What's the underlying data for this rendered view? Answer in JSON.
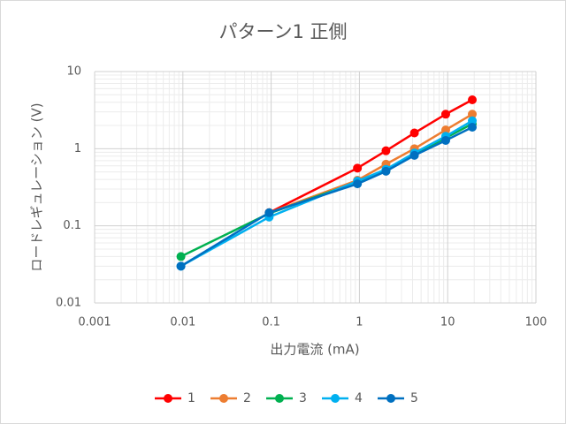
{
  "chart_data": {
    "type": "line",
    "title": "パターン1 正側",
    "x_label": "出力電流 (mA)",
    "y_label": "ロードレギュレーション (V)",
    "x": [
      0.0095,
      0.095,
      0.95,
      2,
      4.2,
      9.5,
      19
    ],
    "series": [
      {
        "name": "1",
        "color": "#ff0000",
        "values": [
          null,
          0.148,
          0.56,
          0.94,
          1.6,
          2.8,
          4.3
        ]
      },
      {
        "name": "2",
        "color": "#ed7d31",
        "values": [
          null,
          0.148,
          0.39,
          0.63,
          1.0,
          1.75,
          2.8
        ]
      },
      {
        "name": "3",
        "color": "#00b050",
        "values": [
          0.04,
          0.145,
          0.37,
          0.52,
          0.86,
          1.38,
          2.1
        ]
      },
      {
        "name": "4",
        "color": "#00b0f0",
        "values": [
          0.03,
          0.13,
          0.38,
          0.54,
          0.88,
          1.45,
          2.3
        ]
      },
      {
        "name": "5",
        "color": "#0070c0",
        "values": [
          0.03,
          0.148,
          0.35,
          0.51,
          0.82,
          1.28,
          1.9
        ]
      }
    ],
    "xlim": [
      0.001,
      100
    ],
    "xticks": [
      0.001,
      0.01,
      0.1,
      1,
      10,
      100
    ],
    "ylim": [
      0.01,
      10
    ],
    "yticks": [
      0.01,
      0.1,
      1,
      10
    ],
    "x_log": true,
    "y_log": true,
    "grid": true,
    "legend": "bottom"
  }
}
